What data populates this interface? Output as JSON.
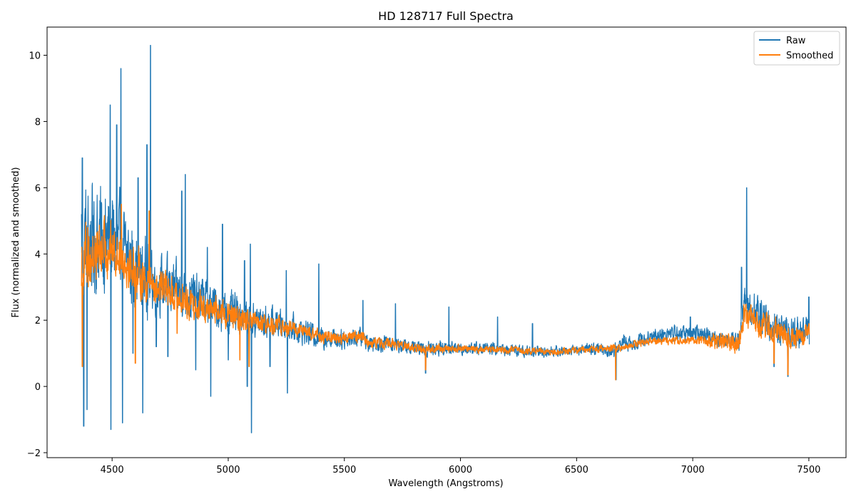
{
  "chart_data": {
    "type": "line",
    "title": "HD 128717 Full Spectra",
    "xlabel": "Wavelength (Angstroms)",
    "ylabel": "Flux (normalized and smoothed)",
    "xlim": [
      4220,
      7660
    ],
    "ylim": [
      -2.15,
      10.85
    ],
    "xticks": [
      4500,
      5000,
      5500,
      6000,
      6500,
      7000,
      7500
    ],
    "yticks": [
      -2,
      0,
      2,
      4,
      6,
      8,
      10
    ],
    "xtick_labels": [
      "4500",
      "5000",
      "5500",
      "6000",
      "6500",
      "7000",
      "7500"
    ],
    "ytick_labels": [
      "−2",
      "0",
      "2",
      "4",
      "6",
      "8",
      "10"
    ],
    "grid": false,
    "legend_position": "top-right",
    "x_range": [
      4368,
      7502
    ],
    "series": [
      {
        "name": "Raw",
        "color": "#1f77b4",
        "continuum": [
          [
            4368,
            4.6
          ],
          [
            4400,
            4.4
          ],
          [
            4450,
            4.5
          ],
          [
            4500,
            4.4
          ],
          [
            4550,
            4.0
          ],
          [
            4600,
            3.6
          ],
          [
            4650,
            3.3
          ],
          [
            4700,
            3.1
          ],
          [
            4750,
            3.0
          ],
          [
            4800,
            2.8
          ],
          [
            4850,
            2.7
          ],
          [
            4900,
            2.6
          ],
          [
            4950,
            2.4
          ],
          [
            5000,
            2.2
          ],
          [
            5050,
            2.15
          ],
          [
            5100,
            2.0
          ],
          [
            5150,
            1.95
          ],
          [
            5200,
            1.9
          ],
          [
            5250,
            1.85
          ],
          [
            5300,
            1.7
          ],
          [
            5400,
            1.5
          ],
          [
            5500,
            1.45
          ],
          [
            5570,
            1.5
          ],
          [
            5600,
            1.35
          ],
          [
            5700,
            1.3
          ],
          [
            5800,
            1.15
          ],
          [
            5900,
            1.15
          ],
          [
            6000,
            1.15
          ],
          [
            6100,
            1.15
          ],
          [
            6200,
            1.1
          ],
          [
            6300,
            1.05
          ],
          [
            6400,
            1.05
          ],
          [
            6500,
            1.1
          ],
          [
            6600,
            1.15
          ],
          [
            6660,
            1.05
          ],
          [
            6700,
            1.35
          ],
          [
            6760,
            1.3
          ],
          [
            6800,
            1.5
          ],
          [
            6900,
            1.6
          ],
          [
            7000,
            1.6
          ],
          [
            7100,
            1.45
          ],
          [
            7200,
            1.4
          ],
          [
            7220,
            2.6
          ],
          [
            7300,
            2.0
          ],
          [
            7400,
            1.6
          ],
          [
            7502,
            1.6
          ]
        ],
        "noise": [
          [
            4368,
            1.6
          ],
          [
            4500,
            1.4
          ],
          [
            4600,
            1.1
          ],
          [
            4700,
            0.8
          ],
          [
            4800,
            0.7
          ],
          [
            5000,
            0.55
          ],
          [
            5100,
            0.5
          ],
          [
            5300,
            0.35
          ],
          [
            5500,
            0.28
          ],
          [
            5700,
            0.22
          ],
          [
            6000,
            0.18
          ],
          [
            6500,
            0.14
          ],
          [
            6700,
            0.2
          ],
          [
            7000,
            0.22
          ],
          [
            7200,
            0.25
          ],
          [
            7250,
            0.55
          ],
          [
            7400,
            0.45
          ],
          [
            7502,
            0.4
          ]
        ],
        "features": [
          {
            "x": 4372,
            "y": 6.9
          },
          {
            "x": 4378,
            "y": -1.2
          },
          {
            "x": 4392,
            "y": -0.7
          },
          {
            "x": 4492,
            "y": 8.5
          },
          {
            "x": 4495,
            "y": -1.3
          },
          {
            "x": 4520,
            "y": 7.9
          },
          {
            "x": 4538,
            "y": 9.6
          },
          {
            "x": 4545,
            "y": -1.1
          },
          {
            "x": 4590,
            "y": 1.0
          },
          {
            "x": 4612,
            "y": 6.3
          },
          {
            "x": 4632,
            "y": -0.8
          },
          {
            "x": 4650,
            "y": 7.3
          },
          {
            "x": 4665,
            "y": 10.3
          },
          {
            "x": 4690,
            "y": 1.2
          },
          {
            "x": 4740,
            "y": 0.9
          },
          {
            "x": 4800,
            "y": 5.9
          },
          {
            "x": 4815,
            "y": 6.4
          },
          {
            "x": 4860,
            "y": 0.5
          },
          {
            "x": 4910,
            "y": 4.2
          },
          {
            "x": 4925,
            "y": -0.3
          },
          {
            "x": 4975,
            "y": 4.9
          },
          {
            "x": 5000,
            "y": 0.8
          },
          {
            "x": 5070,
            "y": 3.8
          },
          {
            "x": 5082,
            "y": 0.0
          },
          {
            "x": 5095,
            "y": 4.3
          },
          {
            "x": 5100,
            "y": -1.4
          },
          {
            "x": 5180,
            "y": 0.6
          },
          {
            "x": 5250,
            "y": 3.5
          },
          {
            "x": 5255,
            "y": -0.2
          },
          {
            "x": 5390,
            "y": 3.7
          },
          {
            "x": 5580,
            "y": 2.6
          },
          {
            "x": 5720,
            "y": 2.5
          },
          {
            "x": 5850,
            "y": 0.4
          },
          {
            "x": 5950,
            "y": 2.4
          },
          {
            "x": 6160,
            "y": 2.1
          },
          {
            "x": 6310,
            "y": 1.9
          },
          {
            "x": 6670,
            "y": 0.2
          },
          {
            "x": 6990,
            "y": 2.1
          },
          {
            "x": 7232,
            "y": 6.0
          },
          {
            "x": 7210,
            "y": 3.6
          },
          {
            "x": 7350,
            "y": 0.6
          },
          {
            "x": 7410,
            "y": 0.3
          },
          {
            "x": 7500,
            "y": 2.7
          }
        ]
      },
      {
        "name": "Smoothed",
        "color": "#ff7f0e",
        "continuum": [
          [
            4368,
            3.8
          ],
          [
            4400,
            3.9
          ],
          [
            4450,
            4.1
          ],
          [
            4500,
            4.2
          ],
          [
            4550,
            3.9
          ],
          [
            4600,
            3.5
          ],
          [
            4650,
            3.2
          ],
          [
            4700,
            3.0
          ],
          [
            4750,
            2.9
          ],
          [
            4800,
            2.6
          ],
          [
            4850,
            2.5
          ],
          [
            4900,
            2.4
          ],
          [
            4950,
            2.3
          ],
          [
            5000,
            2.1
          ],
          [
            5050,
            2.05
          ],
          [
            5100,
            1.9
          ],
          [
            5200,
            1.85
          ],
          [
            5300,
            1.7
          ],
          [
            5400,
            1.5
          ],
          [
            5500,
            1.45
          ],
          [
            5570,
            1.55
          ],
          [
            5600,
            1.35
          ],
          [
            5700,
            1.3
          ],
          [
            5800,
            1.15
          ],
          [
            6000,
            1.15
          ],
          [
            6200,
            1.1
          ],
          [
            6400,
            1.05
          ],
          [
            6500,
            1.1
          ],
          [
            6600,
            1.15
          ],
          [
            6700,
            1.15
          ],
          [
            6760,
            1.3
          ],
          [
            6800,
            1.35
          ],
          [
            7000,
            1.4
          ],
          [
            7100,
            1.35
          ],
          [
            7200,
            1.35
          ],
          [
            7220,
            2.2
          ],
          [
            7300,
            1.9
          ],
          [
            7400,
            1.5
          ],
          [
            7502,
            1.6
          ]
        ],
        "noise": [
          [
            4368,
            0.9
          ],
          [
            4500,
            0.7
          ],
          [
            4650,
            0.6
          ],
          [
            4800,
            0.45
          ],
          [
            5000,
            0.35
          ],
          [
            5300,
            0.2
          ],
          [
            5600,
            0.15
          ],
          [
            6000,
            0.1
          ],
          [
            6500,
            0.09
          ],
          [
            7000,
            0.1
          ],
          [
            7220,
            0.35
          ],
          [
            7400,
            0.35
          ],
          [
            7502,
            0.25
          ]
        ],
        "features": [
          {
            "x": 4372,
            "y": 0.6
          },
          {
            "x": 4395,
            "y": 4.8
          },
          {
            "x": 4540,
            "y": 5.5
          },
          {
            "x": 4600,
            "y": 0.7
          },
          {
            "x": 4660,
            "y": 5.3
          },
          {
            "x": 4780,
            "y": 1.6
          },
          {
            "x": 5050,
            "y": 0.8
          },
          {
            "x": 5090,
            "y": 0.6
          },
          {
            "x": 5850,
            "y": 0.5
          },
          {
            "x": 6668,
            "y": 0.2
          },
          {
            "x": 7350,
            "y": 0.7
          },
          {
            "x": 7410,
            "y": 0.35
          }
        ]
      }
    ]
  }
}
